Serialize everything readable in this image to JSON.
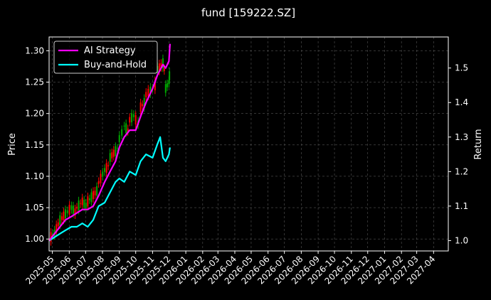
{
  "chart_data": {
    "type": "line",
    "title": "fund [159222.SZ]",
    "ylabel_left": "Price",
    "ylabel_right": "Return",
    "x_ticks": [
      "2025-05",
      "2025-06",
      "2025-07",
      "2025-08",
      "2025-09",
      "2025-10",
      "2025-11",
      "2025-12",
      "2026-01",
      "2026-02",
      "2026-03",
      "2026-04",
      "2026-05",
      "2026-06",
      "2026-07",
      "2026-08",
      "2026-09",
      "2026-10",
      "2026-11",
      "2026-12",
      "2027-01",
      "2027-02",
      "2027-03",
      "2027-04"
    ],
    "xlim": [
      "2025-04-25",
      "2027-04-28"
    ],
    "ylim_left": [
      0.981,
      1.322
    ],
    "ylim_right": [
      0.97,
      1.59
    ],
    "left_ticks": [
      "1.00",
      "1.05",
      "1.10",
      "1.15",
      "1.20",
      "1.25",
      "1.30"
    ],
    "right_ticks": [
      "1.0",
      "1.1",
      "1.2",
      "1.3",
      "1.4",
      "1.5"
    ],
    "grid": true,
    "legend": {
      "position": "top-left",
      "entries": [
        "AI Strategy",
        "Buy-and-Hold"
      ]
    },
    "colors": {
      "background": "#000000",
      "ai_strategy": "#ff00ff",
      "buy_and_hold": "#00ffff",
      "candle_up": "#ff0000",
      "candle_down": "#00aa00",
      "grid": "#555555"
    },
    "series": [
      {
        "name": "AI Strategy",
        "axis": "right",
        "points": [
          [
            "2025-04-25",
            1.0
          ],
          [
            "2025-05-05",
            1.02
          ],
          [
            "2025-05-15",
            1.04
          ],
          [
            "2025-05-25",
            1.06
          ],
          [
            "2025-06-05",
            1.07
          ],
          [
            "2025-06-15",
            1.08
          ],
          [
            "2025-06-25",
            1.09
          ],
          [
            "2025-07-05",
            1.09
          ],
          [
            "2025-07-15",
            1.1
          ],
          [
            "2025-07-25",
            1.13
          ],
          [
            "2025-08-05",
            1.17
          ],
          [
            "2025-08-15",
            1.2
          ],
          [
            "2025-08-25",
            1.23
          ],
          [
            "2025-09-01",
            1.27
          ],
          [
            "2025-09-10",
            1.3
          ],
          [
            "2025-09-20",
            1.32
          ],
          [
            "2025-10-01",
            1.32
          ],
          [
            "2025-10-10",
            1.36
          ],
          [
            "2025-10-20",
            1.4
          ],
          [
            "2025-11-01",
            1.44
          ],
          [
            "2025-11-10",
            1.48
          ],
          [
            "2025-11-20",
            1.51
          ],
          [
            "2025-11-25",
            1.5
          ],
          [
            "2025-12-01",
            1.52
          ],
          [
            "2025-12-03",
            1.57
          ]
        ]
      },
      {
        "name": "Buy-and-Hold",
        "axis": "right",
        "points": [
          [
            "2025-04-25",
            1.0
          ],
          [
            "2025-05-05",
            1.01
          ],
          [
            "2025-05-15",
            1.02
          ],
          [
            "2025-05-25",
            1.03
          ],
          [
            "2025-06-05",
            1.04
          ],
          [
            "2025-06-15",
            1.04
          ],
          [
            "2025-06-25",
            1.05
          ],
          [
            "2025-07-05",
            1.04
          ],
          [
            "2025-07-15",
            1.06
          ],
          [
            "2025-07-25",
            1.1
          ],
          [
            "2025-08-05",
            1.11
          ],
          [
            "2025-08-15",
            1.14
          ],
          [
            "2025-08-25",
            1.17
          ],
          [
            "2025-09-01",
            1.18
          ],
          [
            "2025-09-10",
            1.17
          ],
          [
            "2025-09-20",
            1.2
          ],
          [
            "2025-10-01",
            1.19
          ],
          [
            "2025-10-10",
            1.23
          ],
          [
            "2025-10-20",
            1.25
          ],
          [
            "2025-11-01",
            1.24
          ],
          [
            "2025-11-10",
            1.28
          ],
          [
            "2025-11-15",
            1.3
          ],
          [
            "2025-11-20",
            1.24
          ],
          [
            "2025-11-25",
            1.23
          ],
          [
            "2025-12-01",
            1.25
          ],
          [
            "2025-12-03",
            1.27
          ]
        ]
      },
      {
        "name": "",
        "axis": "left",
        "style": "candlestick-like bars around price",
        "points": [
          [
            "2025-04-25",
            1.0,
            1.01
          ],
          [
            "2025-05-05",
            1.01,
            1.03
          ],
          [
            "2025-05-15",
            1.03,
            1.04
          ],
          [
            "2025-05-25",
            1.04,
            1.05
          ],
          [
            "2025-06-05",
            1.05,
            1.04
          ],
          [
            "2025-06-15",
            1.05,
            1.06
          ],
          [
            "2025-06-25",
            1.06,
            1.05
          ],
          [
            "2025-07-05",
            1.06,
            1.07
          ],
          [
            "2025-07-15",
            1.07,
            1.08
          ],
          [
            "2025-07-25",
            1.09,
            1.11
          ],
          [
            "2025-08-05",
            1.11,
            1.12
          ],
          [
            "2025-08-15",
            1.13,
            1.14
          ],
          [
            "2025-08-25",
            1.14,
            1.15
          ],
          [
            "2025-09-01",
            1.16,
            1.18
          ],
          [
            "2025-09-10",
            1.18,
            1.17
          ],
          [
            "2025-09-20",
            1.19,
            1.2
          ],
          [
            "2025-10-01",
            1.19,
            1.18
          ],
          [
            "2025-10-10",
            1.21,
            1.22
          ],
          [
            "2025-10-20",
            1.23,
            1.24
          ],
          [
            "2025-11-01",
            1.24,
            1.25
          ],
          [
            "2025-11-10",
            1.27,
            1.28
          ],
          [
            "2025-11-20",
            1.28,
            1.26
          ],
          [
            "2025-11-25",
            1.24,
            1.25
          ],
          [
            "2025-12-01",
            1.25,
            1.27
          ],
          [
            "2025-12-03",
            1.27,
            1.28
          ]
        ]
      }
    ]
  }
}
